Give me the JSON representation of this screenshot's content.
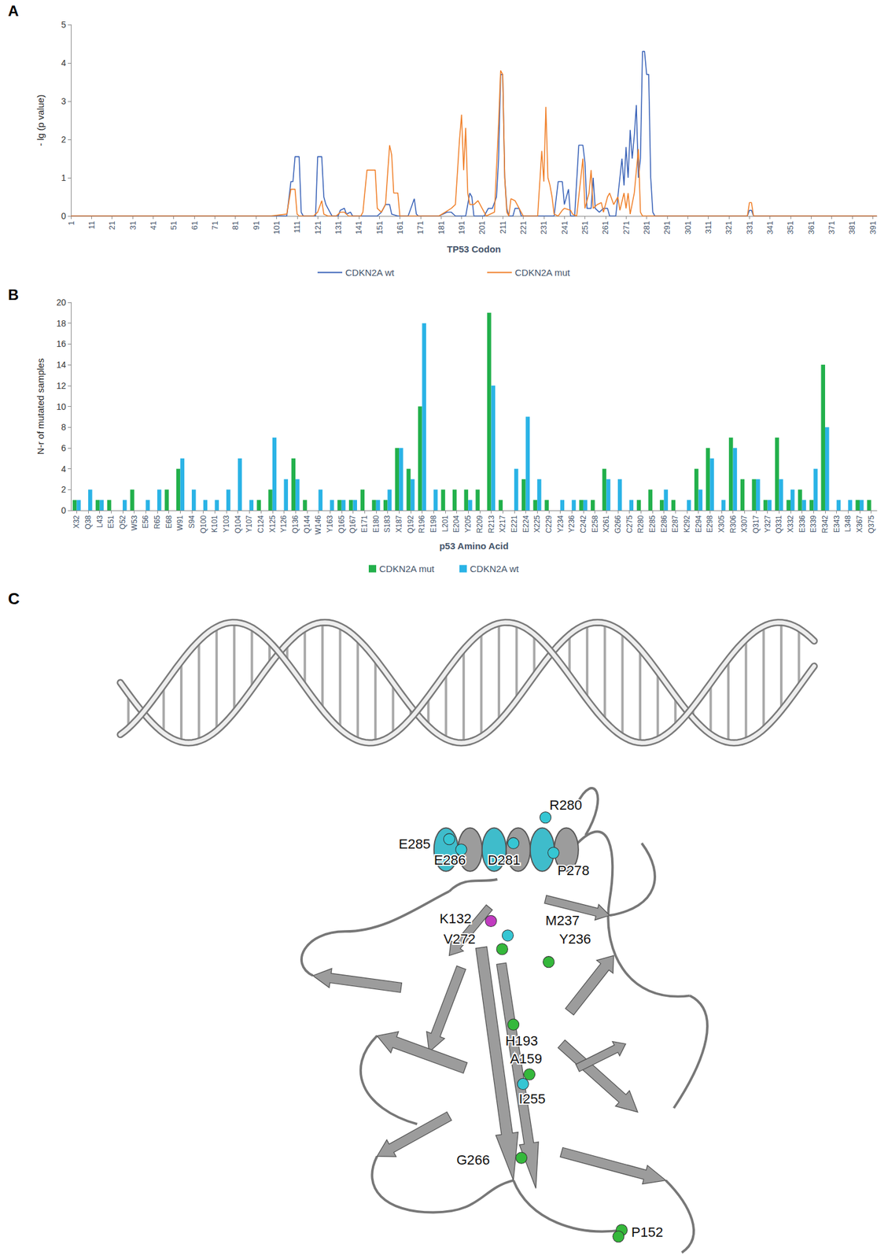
{
  "chart_data": [
    {
      "type": "line",
      "title": "A",
      "x_label": "TP53 Codon",
      "y_label": "- lg (p value)",
      "xlim": [
        1,
        393
      ],
      "xticks": [
        1,
        11,
        21,
        31,
        41,
        51,
        61,
        71,
        81,
        91,
        101,
        111,
        121,
        131,
        141,
        151,
        161,
        171,
        181,
        191,
        201,
        211,
        221,
        231,
        241,
        251,
        261,
        271,
        281,
        291,
        301,
        311,
        321,
        331,
        341,
        351,
        361,
        371,
        381,
        391
      ],
      "ylim": [
        0,
        5
      ],
      "yticks": [
        0,
        1,
        2,
        3,
        4,
        5
      ],
      "legend": "bottom",
      "series": [
        {
          "name": "CDKN2A wt",
          "color": "#3a63b8",
          "x": [
            1,
            106,
            108,
            109,
            110,
            112,
            113,
            114,
            120,
            121,
            123,
            124,
            125,
            127,
            128,
            131,
            132,
            134,
            135,
            137,
            138,
            150,
            152,
            154,
            156,
            157,
            160,
            165,
            167,
            168,
            169,
            170,
            180,
            184,
            186,
            188,
            193,
            195,
            196,
            197,
            202,
            204,
            206,
            208,
            209,
            210,
            211,
            212,
            213,
            214,
            216,
            217,
            219,
            220,
            236,
            238,
            240,
            241,
            243,
            244,
            246,
            248,
            250,
            251,
            252,
            254,
            255,
            256,
            258,
            260,
            262,
            263,
            266,
            267,
            269,
            270,
            271,
            272,
            273,
            274,
            275,
            276,
            277,
            278,
            279,
            280,
            281,
            282,
            283,
            284,
            285,
            330,
            331,
            332,
            333,
            393
          ],
          "values": [
            0,
            0,
            0.9,
            0.9,
            1.55,
            1.55,
            0.1,
            0,
            0,
            1.55,
            1.55,
            0.5,
            0.3,
            0.1,
            0,
            0,
            0.15,
            0.2,
            0.05,
            0.1,
            0,
            0,
            0.1,
            0.3,
            0.3,
            0.05,
            0,
            0,
            0.3,
            0.45,
            0.05,
            0,
            0,
            0.1,
            0.1,
            0,
            0,
            0.6,
            0.5,
            0,
            0,
            0.2,
            0.2,
            0.5,
            1.5,
            3.7,
            3.7,
            1.0,
            0.2,
            0,
            0,
            0.2,
            0.2,
            0,
            0,
            0.9,
            0.9,
            0.3,
            0.7,
            0,
            0,
            1.85,
            1.85,
            1.4,
            0.2,
            0.2,
            1.0,
            0.2,
            0.1,
            0.2,
            0.2,
            0,
            0,
            0.5,
            1.5,
            0.8,
            1.8,
            1.0,
            2.25,
            1.5,
            2.1,
            2.9,
            1.0,
            1.5,
            4.3,
            4.3,
            3.7,
            3.7,
            1.0,
            0.1,
            0,
            0,
            0.15,
            0.15,
            0,
            0
          ]
        },
        {
          "name": "CDKN2A mut",
          "color": "#f0802a",
          "x": [
            1,
            98,
            106,
            108,
            110,
            111,
            112,
            119,
            121,
            123,
            124,
            126,
            130,
            132,
            134,
            136,
            142,
            143,
            145,
            149,
            150,
            152,
            154,
            156,
            157,
            158,
            160,
            161,
            180,
            186,
            188,
            190,
            191,
            192,
            193,
            194,
            195,
            197,
            199,
            201,
            203,
            207,
            209,
            210,
            211,
            212,
            213,
            214,
            215,
            217,
            218,
            220,
            221,
            228,
            230,
            231,
            232,
            233,
            234,
            235,
            236,
            238,
            240,
            241,
            244,
            245,
            247,
            250,
            251,
            253,
            254,
            255,
            257,
            259,
            260,
            262,
            263,
            265,
            267,
            268,
            270,
            271,
            272,
            273,
            275,
            277,
            278,
            279,
            330,
            331,
            332,
            333,
            393
          ],
          "values": [
            0,
            0,
            0.05,
            0.7,
            0.7,
            0.05,
            0,
            0,
            0.1,
            0.4,
            0.05,
            0,
            0,
            0.1,
            0.1,
            0,
            0,
            0.1,
            1.2,
            1.2,
            0.2,
            0.1,
            0.3,
            1.85,
            1.6,
            0.6,
            0.6,
            0,
            0,
            0.2,
            0.3,
            2.0,
            2.65,
            1.2,
            2.3,
            0.6,
            0.3,
            0.3,
            0.4,
            0.2,
            0,
            0.1,
            2.4,
            3.8,
            3.7,
            1.0,
            0.1,
            0,
            0.45,
            0.4,
            0.3,
            0.1,
            0,
            0,
            1.7,
            0.9,
            2.85,
            1.0,
            0.8,
            0.5,
            0.05,
            0,
            0.15,
            0.2,
            0.15,
            0.05,
            0,
            1.5,
            0.2,
            0.6,
            1.2,
            0.2,
            0.3,
            0.35,
            0.1,
            0.5,
            0.6,
            0.3,
            0.5,
            0.15,
            0.6,
            0.2,
            0.6,
            0.05,
            0.6,
            1.75,
            0.1,
            0,
            0,
            0.35,
            0.35,
            0,
            0
          ]
        }
      ]
    },
    {
      "type": "bar",
      "title": "B",
      "x_label": "p53 Amino Acid",
      "y_label": "N-r of mutated samples",
      "categories": [
        "X32",
        "Q38",
        "L43",
        "E51",
        "Q52",
        "W53",
        "E56",
        "R65",
        "E68",
        "W91",
        "S94",
        "Q100",
        "K101",
        "Y103",
        "Q104",
        "Y107",
        "C124",
        "X125",
        "Y126",
        "Q136",
        "Q144",
        "W146",
        "Y163",
        "Q165",
        "Q167",
        "E171",
        "E180",
        "S183",
        "X187",
        "Q192",
        "R196",
        "E198",
        "L201",
        "E204",
        "Y205",
        "R209",
        "R213",
        "X217",
        "E221",
        "E224",
        "X225",
        "C229",
        "Y234",
        "Y236",
        "C242",
        "E258",
        "X261",
        "G266",
        "C275",
        "R280",
        "E285",
        "E286",
        "E287",
        "K292",
        "E294",
        "E298",
        "X305",
        "R306",
        "X307",
        "Q317",
        "Y327",
        "Q331",
        "X332",
        "E336",
        "E339",
        "R342",
        "E343",
        "L348",
        "X367",
        "Q375"
      ],
      "ylim": [
        0,
        20
      ],
      "yticks": [
        0,
        2,
        4,
        6,
        8,
        10,
        12,
        14,
        16,
        18,
        20
      ],
      "legend": "bottom",
      "series": [
        {
          "name": "CDKN2A mut",
          "color": "#22b04b",
          "values": [
            1,
            0,
            1,
            1,
            0,
            2,
            0,
            0,
            2,
            4,
            0,
            0,
            0,
            0,
            0,
            0,
            1,
            2,
            0,
            5,
            1,
            0,
            0,
            1,
            1,
            2,
            1,
            1,
            6,
            4,
            10,
            0,
            2,
            2,
            2,
            2,
            19,
            1,
            0,
            3,
            1,
            1,
            0,
            0,
            1,
            1,
            4,
            0,
            0,
            1,
            2,
            1,
            1,
            0,
            4,
            6,
            0,
            7,
            3,
            3,
            1,
            7,
            1,
            2,
            1,
            14,
            0,
            0,
            1,
            1
          ]
        },
        {
          "name": "CDKN2A wt",
          "color": "#2ab3e6",
          "values": [
            1,
            2,
            1,
            0,
            1,
            0,
            1,
            2,
            0,
            5,
            2,
            1,
            1,
            2,
            5,
            1,
            0,
            7,
            3,
            3,
            0,
            2,
            1,
            1,
            1,
            0,
            1,
            2,
            6,
            3,
            18,
            2,
            0,
            0,
            1,
            0,
            12,
            0,
            4,
            9,
            3,
            0,
            1,
            1,
            1,
            0,
            3,
            3,
            1,
            0,
            0,
            2,
            0,
            1,
            2,
            5,
            1,
            6,
            0,
            3,
            1,
            3,
            2,
            1,
            4,
            8,
            1,
            1,
            1,
            0
          ]
        }
      ]
    }
  ],
  "diagram": {
    "title": "C",
    "residues": [
      {
        "label": "R280",
        "color": "#36c6d3"
      },
      {
        "label": "E285",
        "color": "#36c6d3"
      },
      {
        "label": "E286",
        "color": "#36c6d3"
      },
      {
        "label": "D281",
        "color": "#36c6d3"
      },
      {
        "label": "P278",
        "color": "#36c6d3"
      },
      {
        "label": "K132",
        "color": "#c13bc0"
      },
      {
        "label": "M237",
        "color": "#36c6d3"
      },
      {
        "label": "V272",
        "color": "#35b83b"
      },
      {
        "label": "Y236",
        "color": "#35b83b"
      },
      {
        "label": "H193",
        "color": "#35b83b"
      },
      {
        "label": "A159",
        "color": "#35b83b"
      },
      {
        "label": "I255",
        "color": "#36c6d3"
      },
      {
        "label": "G266",
        "color": "#35b83b"
      },
      {
        "label": "P152",
        "color": "#35b83b"
      }
    ]
  }
}
